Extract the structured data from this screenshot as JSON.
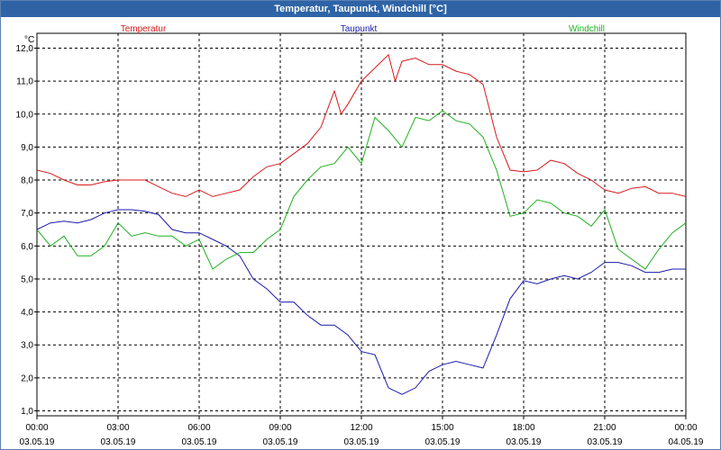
{
  "window": {
    "title": "Temperatur, Taupunkt, Windchill [°C]"
  },
  "chart_data": {
    "type": "line",
    "title": "Temperatur, Taupunkt, Windchill [°C]",
    "ylabel": "°C",
    "ylim": [
      1.0,
      12.0
    ],
    "xlim": [
      0,
      24
    ],
    "grid": true,
    "legend": "top",
    "y_ticks": [
      "1,0",
      "2,0",
      "3,0",
      "4,0",
      "5,0",
      "6,0",
      "7,0",
      "8,0",
      "9,0",
      "10,0",
      "11,0",
      "12,0"
    ],
    "x_ticks": [
      {
        "time": "00:00",
        "date": "03.05.19"
      },
      {
        "time": "03:00",
        "date": "03.05.19"
      },
      {
        "time": "06:00",
        "date": "03.05.19"
      },
      {
        "time": "09:00",
        "date": "03.05.19"
      },
      {
        "time": "12:00",
        "date": "03.05.19"
      },
      {
        "time": "15:00",
        "date": "03.05.19"
      },
      {
        "time": "18:00",
        "date": "03.05.19"
      },
      {
        "time": "21:00",
        "date": "03.05.19"
      },
      {
        "time": "00:00",
        "date": "04.05.19"
      }
    ],
    "series": [
      {
        "name": "Temperatur",
        "color": "#d81a1a",
        "x": [
          0,
          0.5,
          1,
          1.5,
          2,
          2.5,
          3,
          3.5,
          4,
          4.5,
          5,
          5.5,
          6,
          6.5,
          7,
          7.5,
          8,
          8.5,
          9,
          9.5,
          10,
          10.5,
          11,
          11.25,
          11.5,
          12,
          12.5,
          13,
          13.25,
          13.5,
          14,
          14.5,
          15,
          15.5,
          16,
          16.5,
          17,
          17.5,
          18,
          18.5,
          19,
          19.5,
          20,
          20.5,
          21,
          21.5,
          22,
          22.5,
          23,
          23.5,
          24
        ],
        "values": [
          8.3,
          8.2,
          8.0,
          7.85,
          7.85,
          7.95,
          8.0,
          8.0,
          8.0,
          7.8,
          7.6,
          7.5,
          7.7,
          7.5,
          7.6,
          7.7,
          8.1,
          8.4,
          8.5,
          8.8,
          9.1,
          9.6,
          10.7,
          10.0,
          10.3,
          11.0,
          11.4,
          11.8,
          11.0,
          11.6,
          11.7,
          11.5,
          11.5,
          11.3,
          11.2,
          10.9,
          9.3,
          8.3,
          8.25,
          8.3,
          8.6,
          8.5,
          8.2,
          8.0,
          7.7,
          7.6,
          7.75,
          7.8,
          7.6,
          7.6,
          7.5
        ]
      },
      {
        "name": "Taupunkt",
        "color": "#1a1aaa",
        "x": [
          0,
          0.5,
          1,
          1.5,
          2,
          2.5,
          3,
          3.5,
          4,
          4.5,
          5,
          5.5,
          6,
          6.5,
          7,
          7.5,
          8,
          8.5,
          9,
          9.5,
          10,
          10.5,
          11,
          11.5,
          12,
          12.5,
          13,
          13.5,
          14,
          14.5,
          15,
          15.5,
          16,
          16.5,
          17,
          17.5,
          18,
          18.5,
          19,
          19.5,
          20,
          20.5,
          21,
          21.5,
          22,
          22.5,
          23,
          23.5,
          24
        ],
        "values": [
          6.5,
          6.7,
          6.75,
          6.7,
          6.8,
          7.0,
          7.1,
          7.1,
          7.05,
          6.95,
          6.5,
          6.4,
          6.4,
          6.2,
          6.0,
          5.7,
          5.0,
          4.7,
          4.3,
          4.3,
          3.9,
          3.6,
          3.6,
          3.3,
          2.8,
          2.7,
          1.7,
          1.5,
          1.7,
          2.2,
          2.4,
          2.5,
          2.4,
          2.3,
          3.3,
          4.4,
          4.95,
          4.85,
          5.0,
          5.1,
          5.0,
          5.2,
          5.5,
          5.5,
          5.4,
          5.2,
          5.2,
          5.3,
          5.3
        ]
      },
      {
        "name": "Windchill",
        "color": "#1fb01f",
        "x": [
          0,
          0.5,
          1,
          1.5,
          2,
          2.5,
          3,
          3.5,
          4,
          4.5,
          5,
          5.5,
          6,
          6.5,
          7,
          7.5,
          8,
          8.5,
          9,
          9.5,
          10,
          10.5,
          11,
          11.5,
          12,
          12.5,
          13,
          13.5,
          14,
          14.5,
          15,
          15.5,
          16,
          16.5,
          17,
          17.5,
          18,
          18.5,
          19,
          19.5,
          20,
          20.5,
          21,
          21.5,
          22,
          22.5,
          23,
          23.5,
          24
        ],
        "values": [
          6.5,
          6.0,
          6.3,
          5.7,
          5.7,
          6.0,
          6.7,
          6.3,
          6.4,
          6.3,
          6.3,
          6.0,
          6.2,
          5.3,
          5.6,
          5.8,
          5.8,
          6.2,
          6.5,
          7.5,
          8.0,
          8.4,
          8.5,
          9.0,
          8.5,
          9.9,
          9.5,
          9.0,
          9.9,
          9.8,
          10.1,
          9.8,
          9.7,
          9.3,
          8.3,
          6.9,
          7.0,
          7.4,
          7.3,
          7.0,
          6.9,
          6.6,
          7.1,
          5.9,
          5.6,
          5.3,
          5.9,
          6.4,
          6.7
        ]
      }
    ]
  }
}
